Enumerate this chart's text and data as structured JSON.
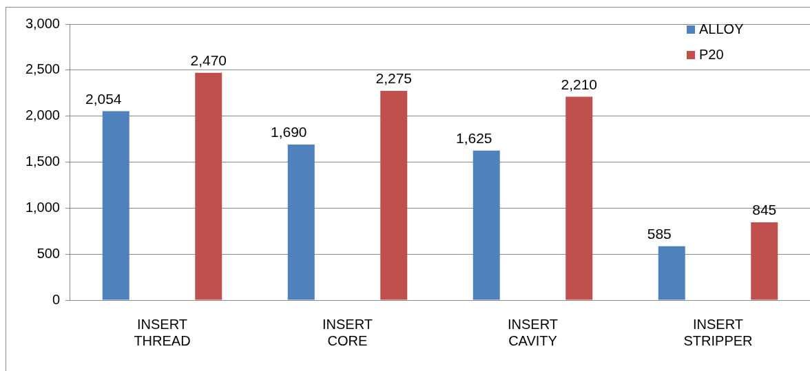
{
  "chart_data": {
    "type": "bar",
    "categories": [
      "INSERT THREAD",
      "INSERT CORE",
      "INSERT CAVITY",
      "INSERT STRIPPER"
    ],
    "series": [
      {
        "name": "ALLOY",
        "color": "#4f81bd",
        "values": [
          2054,
          1690,
          1625,
          585
        ],
        "value_labels": [
          "2,054",
          "1,690",
          "1,625",
          "585"
        ]
      },
      {
        "name": "P20",
        "color": "#c0504d",
        "values": [
          2470,
          2275,
          2210,
          845
        ],
        "value_labels": [
          "2,470",
          "2,275",
          "2,210",
          "845"
        ]
      }
    ],
    "ylim": [
      0,
      3000
    ],
    "yticks": [
      {
        "value": 0,
        "label": "0"
      },
      {
        "value": 500,
        "label": "500"
      },
      {
        "value": 1000,
        "label": "1,000"
      },
      {
        "value": 1500,
        "label": "1,500"
      },
      {
        "value": 2000,
        "label": "2,000"
      },
      {
        "value": 2500,
        "label": "2,500"
      },
      {
        "value": 3000,
        "label": "3,000"
      }
    ],
    "grid": "y",
    "legend": "top right"
  }
}
